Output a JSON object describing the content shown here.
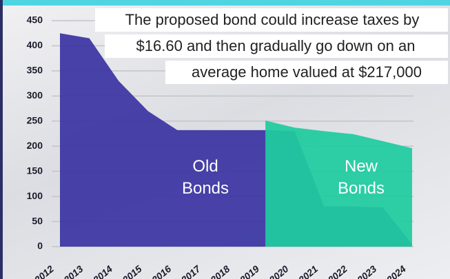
{
  "chart_data": {
    "type": "area",
    "title": [
      "The proposed bond could increase taxes by",
      "$16.60 and then gradually go down on an",
      "average home valued at $217,000"
    ],
    "categories": [
      "2012",
      "2013",
      "2014",
      "2015",
      "2016",
      "2017",
      "2018",
      "2019",
      "2020",
      "2021",
      "2022",
      "2023",
      "2024"
    ],
    "series": [
      {
        "name": "Old Bonds",
        "color": "#3b35a3",
        "values": [
          425,
          415,
          330,
          270,
          232,
          232,
          232,
          232,
          230,
          80,
          80,
          78,
          5
        ]
      },
      {
        "name": "New Bonds",
        "color": "#1fcb9f",
        "values": [
          null,
          null,
          null,
          null,
          null,
          null,
          null,
          251,
          237,
          230,
          224,
          210,
          196
        ]
      }
    ],
    "ylim": [
      0,
      450
    ],
    "yticks": [
      0,
      50,
      100,
      150,
      200,
      250,
      300,
      350,
      400,
      450
    ],
    "grid": true
  }
}
